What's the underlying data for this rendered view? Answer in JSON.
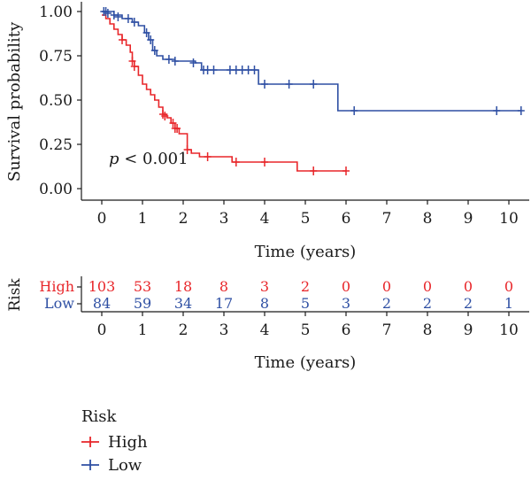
{
  "chart_data": {
    "type": "line",
    "step": true,
    "ylabel": "Survival probability",
    "xlabel": "Time (years)",
    "xlim": [
      0,
      10
    ],
    "ylim": [
      0,
      1
    ],
    "xticks": [
      "0",
      "1",
      "2",
      "3",
      "4",
      "5",
      "6",
      "7",
      "8",
      "9",
      "10"
    ],
    "yticks": [
      "0.00",
      "0.25",
      "0.50",
      "0.75",
      "1.00"
    ],
    "annotation": {
      "p_symbol": "p",
      "p_rest": " < 0.001"
    },
    "colors": {
      "High": "#e8262a",
      "Low": "#2e4fa3"
    },
    "series": [
      {
        "name": "High",
        "steps": [
          [
            0,
            0.98
          ],
          [
            0.1,
            0.96
          ],
          [
            0.2,
            0.93
          ],
          [
            0.3,
            0.9
          ],
          [
            0.4,
            0.87
          ],
          [
            0.5,
            0.84
          ],
          [
            0.6,
            0.81
          ],
          [
            0.7,
            0.77
          ],
          [
            0.75,
            0.72
          ],
          [
            0.8,
            0.69
          ],
          [
            0.9,
            0.64
          ],
          [
            1.0,
            0.59
          ],
          [
            1.1,
            0.56
          ],
          [
            1.2,
            0.53
          ],
          [
            1.3,
            0.5
          ],
          [
            1.4,
            0.46
          ],
          [
            1.5,
            0.42
          ],
          [
            1.6,
            0.4
          ],
          [
            1.7,
            0.37
          ],
          [
            1.8,
            0.34
          ],
          [
            1.9,
            0.31
          ],
          [
            2.1,
            0.22
          ],
          [
            2.2,
            0.2
          ],
          [
            2.4,
            0.18
          ],
          [
            3.2,
            0.15
          ],
          [
            4.8,
            0.1
          ],
          [
            6.0,
            0.1
          ]
        ],
        "censors": [
          [
            0.5,
            0.84
          ],
          [
            0.75,
            0.72
          ],
          [
            0.8,
            0.69
          ],
          [
            1.5,
            0.42
          ],
          [
            1.55,
            0.41
          ],
          [
            1.75,
            0.37
          ],
          [
            1.8,
            0.34
          ],
          [
            1.85,
            0.34
          ],
          [
            2.1,
            0.22
          ],
          [
            2.6,
            0.18
          ],
          [
            3.3,
            0.15
          ],
          [
            4.0,
            0.15
          ],
          [
            5.2,
            0.1
          ],
          [
            6.0,
            0.1
          ]
        ]
      },
      {
        "name": "Low",
        "steps": [
          [
            0,
            1.0
          ],
          [
            0.3,
            0.98
          ],
          [
            0.5,
            0.96
          ],
          [
            0.75,
            0.94
          ],
          [
            0.9,
            0.92
          ],
          [
            1.05,
            0.88
          ],
          [
            1.15,
            0.84
          ],
          [
            1.25,
            0.78
          ],
          [
            1.35,
            0.75
          ],
          [
            1.5,
            0.73
          ],
          [
            1.8,
            0.72
          ],
          [
            2.3,
            0.71
          ],
          [
            2.45,
            0.67
          ],
          [
            3.85,
            0.59
          ],
          [
            5.8,
            0.44
          ],
          [
            10.3,
            0.44
          ]
        ],
        "censors": [
          [
            0.05,
            1.0
          ],
          [
            0.1,
            1.0
          ],
          [
            0.15,
            0.99
          ],
          [
            0.3,
            0.98
          ],
          [
            0.4,
            0.97
          ],
          [
            0.65,
            0.96
          ],
          [
            0.8,
            0.94
          ],
          [
            1.1,
            0.88
          ],
          [
            1.2,
            0.84
          ],
          [
            1.3,
            0.78
          ],
          [
            1.65,
            0.73
          ],
          [
            1.8,
            0.72
          ],
          [
            2.25,
            0.71
          ],
          [
            2.5,
            0.67
          ],
          [
            2.6,
            0.67
          ],
          [
            2.75,
            0.67
          ],
          [
            3.15,
            0.67
          ],
          [
            3.3,
            0.67
          ],
          [
            3.45,
            0.67
          ],
          [
            3.6,
            0.67
          ],
          [
            3.75,
            0.67
          ],
          [
            4.0,
            0.59
          ],
          [
            4.6,
            0.59
          ],
          [
            5.2,
            0.59
          ],
          [
            6.2,
            0.44
          ],
          [
            9.7,
            0.44
          ],
          [
            10.3,
            0.44
          ]
        ]
      }
    ],
    "risk_table": {
      "title": "Risk",
      "xlabel": "Time (years)",
      "rows": [
        {
          "name": "High",
          "values": [
            "103",
            "53",
            "18",
            "8",
            "3",
            "2",
            "0",
            "0",
            "0",
            "0",
            "0"
          ]
        },
        {
          "name": "Low",
          "values": [
            "84",
            "59",
            "34",
            "17",
            "8",
            "5",
            "3",
            "2",
            "2",
            "2",
            "1"
          ]
        }
      ]
    },
    "legend": {
      "title": "Risk",
      "entries": [
        "High",
        "Low"
      ],
      "position": "bottom-left"
    }
  }
}
